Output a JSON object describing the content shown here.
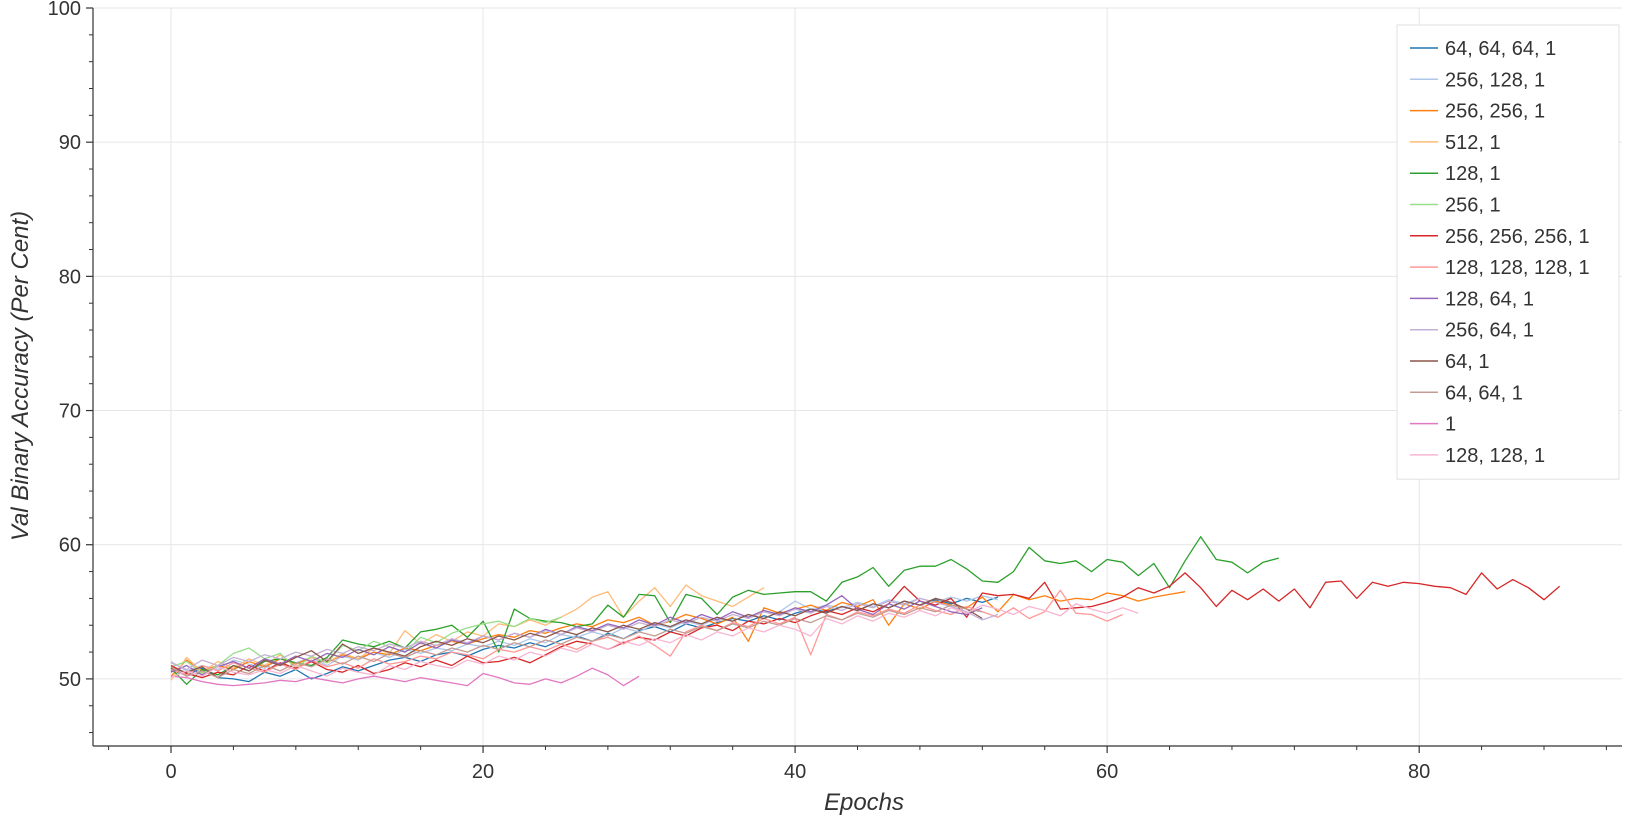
{
  "chart_data": {
    "type": "line",
    "title": "",
    "xlabel": "Epochs",
    "ylabel": "Val Binary Accuracy (Per Cent)",
    "xlim": [
      -5,
      93
    ],
    "ylim": [
      45,
      100
    ],
    "x_ticks": [
      0,
      20,
      40,
      60,
      80
    ],
    "y_ticks": [
      50,
      60,
      70,
      80,
      90,
      100
    ],
    "grid": true,
    "legend_position": "top-right",
    "series": [
      {
        "name": "64, 64, 64, 1",
        "color": "#1f77b4",
        "values": [
          50.6,
          50.3,
          50.8,
          50.1,
          50.0,
          49.8,
          50.5,
          50.2,
          50.7,
          50.0,
          50.4,
          50.9,
          50.6,
          51.0,
          51.4,
          51.6,
          51.3,
          51.8,
          52.0,
          51.7,
          52.2,
          52.5,
          52.3,
          52.7,
          52.4,
          52.9,
          53.2,
          52.8,
          53.4,
          53.0,
          53.6,
          53.9,
          53.5,
          54.1,
          53.8,
          54.2,
          54.5,
          54.3,
          54.7,
          54.4,
          54.9,
          55.2,
          55.0,
          55.4,
          55.1,
          55.6,
          55.3,
          55.8,
          55.5,
          55.9,
          55.6,
          56.0,
          55.7,
          56.1
        ]
      },
      {
        "name": "256, 128, 1",
        "color": "#aec7e8",
        "values": [
          51.3,
          50.6,
          51.0,
          50.7,
          51.4,
          51.1,
          50.8,
          51.5,
          51.2,
          51.6,
          51.0,
          51.7,
          51.4,
          52.0,
          51.6,
          52.2,
          51.9,
          52.3,
          52.1,
          52.6,
          52.4,
          52.8,
          52.5,
          53.0,
          52.7,
          53.3,
          53.1,
          53.5,
          53.2,
          53.8,
          53.5,
          54.1,
          53.8,
          54.3,
          54.0,
          54.5,
          54.3,
          54.8,
          54.5,
          55.0,
          55.8,
          55.2,
          55.5,
          55.3,
          55.7,
          55.4,
          55.9,
          55.6,
          56.0,
          55.7,
          56.1,
          55.8,
          56.2,
          55.9
        ]
      },
      {
        "name": "256, 256, 1",
        "color": "#ff7f0e",
        "values": [
          50.2,
          51.4,
          50.6,
          51.0,
          50.7,
          51.3,
          50.9,
          51.5,
          51.1,
          51.6,
          51.2,
          51.8,
          51.5,
          52.0,
          51.8,
          52.3,
          52.1,
          52.5,
          52.8,
          52.6,
          53.0,
          53.3,
          53.1,
          53.6,
          53.4,
          53.8,
          54.1,
          53.9,
          54.4,
          54.2,
          54.6,
          54.0,
          54.3,
          54.8,
          54.5,
          54.1,
          54.6,
          52.8,
          55.3,
          54.9,
          55.2,
          55.5,
          55.1,
          55.7,
          55.4,
          55.9,
          54.0,
          55.6,
          55.2,
          55.8,
          55.5,
          55.3,
          56.1,
          55.0,
          56.3,
          55.9,
          56.2,
          55.8,
          56.0,
          55.9,
          56.4,
          56.2,
          55.8,
          56.1,
          56.3,
          56.5
        ]
      },
      {
        "name": "512, 1",
        "color": "#ffbb78",
        "values": [
          49.9,
          51.6,
          50.5,
          51.3,
          50.8,
          51.5,
          51.0,
          51.8,
          50.9,
          51.6,
          51.2,
          51.9,
          51.5,
          52.3,
          51.9,
          53.6,
          52.6,
          53.3,
          52.8,
          53.5,
          53.2,
          54.1,
          53.9,
          54.4,
          54.0,
          54.6,
          55.2,
          56.1,
          56.5,
          54.6,
          55.8,
          56.8,
          55.4,
          57.0,
          56.2,
          55.8,
          55.4,
          56.1,
          56.8
        ]
      },
      {
        "name": "128, 1",
        "color": "#2ca02c",
        "values": [
          50.8,
          49.6,
          50.7,
          50.3,
          51.0,
          50.6,
          51.3,
          51.5,
          51.2,
          51.0,
          51.6,
          52.9,
          52.6,
          52.4,
          52.8,
          52.3,
          53.5,
          53.7,
          54.0,
          53.1,
          54.3,
          52.0,
          55.2,
          54.5,
          54.3,
          54.2,
          53.9,
          54.1,
          55.5,
          54.6,
          56.3,
          56.2,
          54.2,
          56.3,
          56.0,
          54.8,
          56.1,
          56.6,
          56.3,
          56.4,
          56.5,
          56.5,
          55.8,
          57.2,
          57.6,
          58.3,
          56.9,
          58.1,
          58.4,
          58.4,
          58.9,
          58.2,
          57.3,
          57.2,
          58.0,
          59.8,
          58.8,
          58.6,
          58.8,
          58.0,
          58.9,
          58.7,
          57.7,
          58.6,
          56.8,
          58.8,
          60.6,
          58.9,
          58.7,
          57.9,
          58.7,
          59.0
        ]
      },
      {
        "name": "256, 1",
        "color": "#98df8a",
        "values": [
          50.9,
          51.3,
          50.4,
          51.0,
          51.9,
          52.3,
          51.5,
          51.9,
          50.8,
          51.7,
          51.2,
          52.5,
          52.1,
          52.8,
          52.4,
          52.0,
          53.1,
          52.7,
          53.4,
          53.8,
          54.1,
          54.3,
          53.9,
          54.5,
          54.2,
          54.6
        ]
      },
      {
        "name": "256, 256, 256, 1",
        "color": "#d62728",
        "values": [
          51.0,
          50.4,
          50.1,
          50.5,
          50.3,
          51.0,
          50.6,
          51.2,
          50.8,
          51.3,
          50.7,
          50.5,
          51.0,
          50.4,
          50.7,
          51.2,
          50.9,
          51.4,
          51.0,
          51.7,
          51.2,
          51.3,
          51.6,
          51.2,
          51.8,
          52.4,
          52.8,
          52.6,
          52.2,
          52.7,
          53.1,
          52.9,
          53.5,
          53.2,
          53.8,
          54.0,
          53.6,
          54.3,
          54.1,
          54.5,
          54.2,
          54.7,
          55.1,
          54.8,
          55.3,
          55.0,
          55.6,
          56.9,
          55.8,
          55.5,
          56.0,
          54.6,
          56.4,
          56.2,
          56.3,
          56.0,
          57.2,
          55.2,
          55.3,
          55.4,
          55.7,
          56.1,
          56.8,
          56.4,
          56.9,
          57.9,
          56.8,
          55.4,
          56.6,
          55.9,
          56.7,
          55.8,
          56.7,
          55.3,
          57.2,
          57.3,
          56.0,
          57.2,
          56.9,
          57.2,
          57.1,
          56.9,
          56.8,
          56.3,
          57.9,
          56.7,
          57.4,
          56.8,
          55.9,
          56.9
        ]
      },
      {
        "name": "128, 128, 128, 1",
        "color": "#ff9896",
        "values": [
          50.7,
          50.3,
          51.0,
          50.6,
          51.2,
          50.8,
          50.5,
          51.1,
          50.7,
          51.4,
          50.9,
          51.2,
          50.8,
          51.5,
          51.1,
          51.3,
          51.7,
          51.5,
          52.0,
          51.8,
          51.5,
          52.2,
          52.0,
          52.4,
          52.1,
          52.6,
          52.2,
          52.8,
          53.1,
          52.6,
          53.2,
          52.5,
          51.7,
          53.5,
          54.0,
          53.6,
          54.2,
          53.9,
          54.5,
          54.1,
          54.6,
          51.8,
          54.8,
          54.4,
          55.0,
          54.7,
          55.2,
          54.9,
          55.5,
          55.1,
          54.8,
          55.4,
          55.0,
          54.6,
          55.3,
          54.5,
          55.0,
          56.6,
          54.9,
          54.8,
          54.3,
          54.8
        ]
      },
      {
        "name": "128, 64, 1",
        "color": "#9467bd",
        "values": [
          50.5,
          51.0,
          50.3,
          50.9,
          51.3,
          50.8,
          51.5,
          51.1,
          51.7,
          51.3,
          51.9,
          51.6,
          52.2,
          51.8,
          52.4,
          52.0,
          52.7,
          52.3,
          52.9,
          52.6,
          53.2,
          52.9,
          53.4,
          53.1,
          53.7,
          53.3,
          53.9,
          53.6,
          54.1,
          53.8,
          54.4,
          54.0,
          54.6,
          54.2,
          54.8,
          54.4,
          55.0,
          54.6,
          55.1,
          54.8,
          55.3,
          55.0,
          55.5,
          56.2,
          55.2,
          54.8,
          55.6,
          55.2,
          55.8,
          55.4,
          55.0,
          54.8,
          55.3
        ]
      },
      {
        "name": "256, 64, 1",
        "color": "#c5b0d5",
        "values": [
          51.2,
          50.7,
          51.4,
          51.0,
          51.6,
          51.3,
          51.8,
          51.5,
          52.0,
          51.7,
          52.2,
          51.9,
          52.4,
          52.1,
          52.6,
          52.3,
          52.8,
          52.5,
          53.0,
          52.7,
          53.2,
          52.9,
          53.4,
          53.1,
          53.6,
          53.3,
          53.8,
          53.5,
          54.0,
          53.7,
          54.2,
          53.9,
          54.4,
          54.1,
          54.6,
          54.3,
          54.8,
          54.5,
          55.0,
          54.7,
          55.2,
          54.9,
          55.4,
          55.1,
          55.6,
          55.3,
          55.8,
          55.5,
          56.0,
          55.7,
          55.4,
          55.0,
          54.4,
          54.8
        ]
      },
      {
        "name": "64, 1",
        "color": "#8c564b",
        "values": [
          50.8,
          50.5,
          50.9,
          50.1,
          51.0,
          50.6,
          51.4,
          51.0,
          51.6,
          52.1,
          51.3,
          52.6,
          51.9,
          52.3,
          52.0,
          51.7,
          52.4,
          52.8,
          52.5,
          53.0,
          52.7,
          53.2,
          52.9,
          53.4,
          53.1,
          53.6,
          53.3,
          53.8,
          53.5,
          54.0,
          53.7,
          54.2,
          53.9,
          54.4,
          54.1,
          54.6,
          54.3,
          54.8,
          54.5,
          55.0,
          54.7,
          55.2,
          54.9,
          55.4,
          55.1,
          55.6,
          55.3,
          55.8,
          55.5,
          56.0,
          55.7,
          55.2,
          54.5
        ]
      },
      {
        "name": "64, 64, 1",
        "color": "#c49c94",
        "values": [
          50.9,
          50.2,
          50.6,
          50.1,
          50.7,
          50.4,
          51.0,
          50.6,
          51.2,
          50.9,
          51.5,
          51.1,
          51.7,
          51.3,
          51.9,
          51.6,
          52.1,
          51.8,
          52.3,
          52.0,
          52.5,
          52.2,
          52.7,
          52.4,
          52.9,
          52.6,
          53.1,
          52.8,
          53.3,
          53.0,
          53.5,
          53.2,
          53.7,
          53.4,
          53.9,
          53.6,
          54.1,
          53.8,
          54.3,
          54.0,
          54.5,
          54.2,
          54.7,
          54.4,
          54.9,
          54.6,
          55.1,
          54.8,
          55.3,
          55.0,
          55.5,
          55.2,
          55.0
        ]
      },
      {
        "name": "1",
        "color": "#e377c2",
        "values": [
          50.2,
          50.1,
          49.8,
          49.6,
          49.5,
          49.6,
          49.7,
          49.9,
          49.8,
          50.1,
          49.9,
          49.7,
          50.0,
          50.2,
          50.0,
          49.8,
          50.1,
          49.9,
          49.7,
          49.5,
          50.4,
          50.1,
          49.7,
          49.6,
          50.0,
          49.7,
          50.2,
          50.8,
          50.3,
          49.5,
          50.2
        ]
      },
      {
        "name": "128, 128, 1",
        "color": "#f7b6d2",
        "values": [
          50.1,
          50.6,
          50.2,
          50.9,
          50.5,
          50.3,
          50.7,
          50.4,
          51.0,
          50.6,
          50.2,
          50.8,
          50.5,
          50.3,
          51.0,
          50.7,
          51.3,
          51.0,
          50.8,
          51.4,
          51.1,
          51.7,
          51.4,
          52.0,
          51.7,
          52.3,
          52.0,
          52.6,
          52.2,
          52.8,
          52.5,
          53.0,
          52.7,
          53.3,
          52.9,
          53.5,
          53.2,
          53.8,
          53.5,
          54.0,
          53.7,
          53.2,
          54.5,
          54.1,
          54.7,
          54.3,
          54.9,
          54.6,
          55.1,
          54.7,
          55.3,
          54.9,
          55.5,
          55.2,
          54.8,
          55.4,
          55.1,
          54.7,
          55.6,
          55.2,
          54.9,
          55.3,
          54.9
        ]
      }
    ]
  }
}
